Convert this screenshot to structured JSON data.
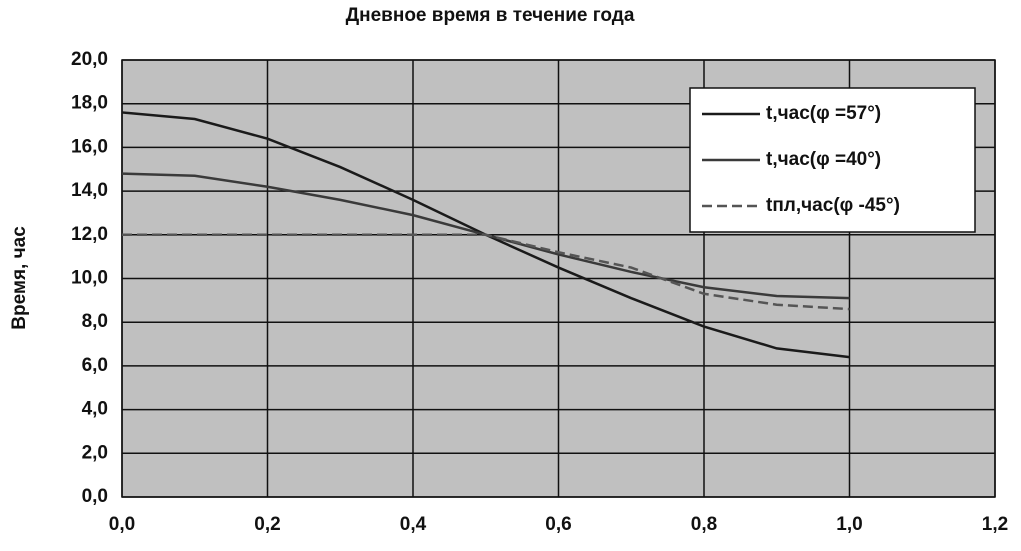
{
  "chart_data": {
    "type": "line",
    "title": "Дневное время в течение года",
    "y_label": "Время, час",
    "x": [
      0,
      0.1,
      0.2,
      0.3,
      0.4,
      0.5,
      0.6,
      0.7,
      0.8,
      0.9,
      1.0
    ],
    "series": [
      {
        "name": "t,час(φ =57°)",
        "color": "#1a1a1a",
        "values": [
          17.6,
          17.3,
          16.4,
          15.1,
          13.6,
          12.0,
          10.5,
          9.1,
          7.8,
          6.8,
          6.4
        ]
      },
      {
        "name": "t,час(φ =40°)",
        "color": "#3a3a3a",
        "values": [
          14.8,
          14.7,
          14.2,
          13.6,
          12.9,
          12.0,
          11.1,
          10.3,
          9.6,
          9.2,
          9.1
        ]
      },
      {
        "name": "tпл,час(φ -45°)",
        "color": "#555555",
        "values": [
          12.0,
          12.0,
          12.0,
          12.0,
          12.0,
          12.0,
          11.2,
          10.5,
          9.3,
          8.8,
          8.6
        ]
      }
    ],
    "xlim": [
      0,
      1.2
    ],
    "ylim": [
      0,
      20
    ],
    "xticks": [
      {
        "value": 0,
        "label": "0,0"
      },
      {
        "value": 0.2,
        "label": "0,2"
      },
      {
        "value": 0.4,
        "label": "0,4"
      },
      {
        "value": 0.6,
        "label": "0,6"
      },
      {
        "value": 0.8,
        "label": "0,8"
      },
      {
        "value": 1.0,
        "label": "1,0"
      },
      {
        "value": 1.2,
        "label": "1,2"
      }
    ],
    "yticks": [
      {
        "value": 0,
        "label": "0,0"
      },
      {
        "value": 2,
        "label": "2,0"
      },
      {
        "value": 4,
        "label": "4,0"
      },
      {
        "value": 6,
        "label": "6,0"
      },
      {
        "value": 8,
        "label": "8,0"
      },
      {
        "value": 10,
        "label": "10,0"
      },
      {
        "value": 12,
        "label": "12,0"
      },
      {
        "value": 14,
        "label": "14,0"
      },
      {
        "value": 16,
        "label": "16,0"
      },
      {
        "value": 18,
        "label": "18,0"
      },
      {
        "value": 20,
        "label": "20,0"
      }
    ],
    "grid": true,
    "plot_background": "#c0c0c0"
  }
}
